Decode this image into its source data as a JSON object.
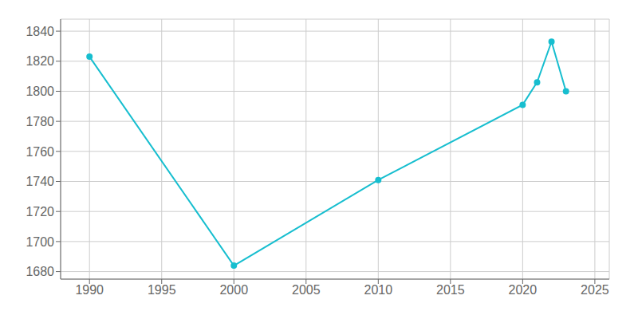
{
  "chart_data": {
    "type": "line",
    "x": [
      1990,
      2000,
      2010,
      2020,
      2021,
      2022,
      2023
    ],
    "values": [
      1823,
      1684,
      1741,
      1791,
      1806,
      1833,
      1800
    ],
    "color": "#17becf",
    "marker": "circle",
    "xlim": [
      1988,
      2026
    ],
    "ylim": [
      1675,
      1848
    ],
    "xticks": [
      1990,
      1995,
      2000,
      2005,
      2010,
      2015,
      2020,
      2025
    ],
    "yticks": [
      1680,
      1700,
      1720,
      1740,
      1760,
      1780,
      1800,
      1820,
      1840
    ],
    "grid": true
  }
}
